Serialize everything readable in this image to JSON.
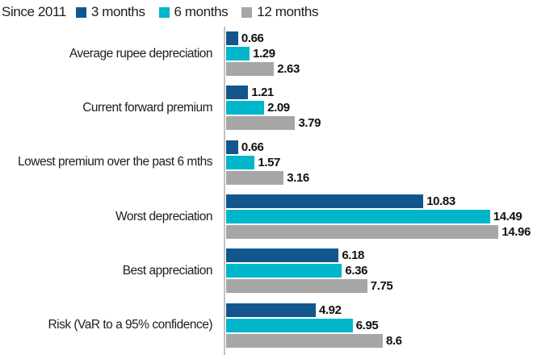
{
  "legend": {
    "title": "Since 2011",
    "items": [
      {
        "label": "3 months",
        "color": "#12568b"
      },
      {
        "label": "6 months",
        "color": "#00b6ca"
      },
      {
        "label": "12 months",
        "color": "#a6a6a6"
      }
    ]
  },
  "chart_data": {
    "type": "bar",
    "orientation": "horizontal",
    "title": "Since 2011",
    "categories": [
      "Average rupee depreciation",
      "Current forward premium",
      "Lowest premium over the past 6 mths",
      "Worst depreciation",
      "Best appreciation",
      "Risk (VaR to a 95% confidence)"
    ],
    "series": [
      {
        "name": "3 months",
        "color": "#12568b",
        "values": [
          0.66,
          1.21,
          0.66,
          10.83,
          6.18,
          4.92
        ]
      },
      {
        "name": "6 months",
        "color": "#00b6ca",
        "values": [
          1.29,
          2.09,
          1.57,
          14.49,
          6.36,
          6.95
        ]
      },
      {
        "name": "12 months",
        "color": "#a6a6a6",
        "values": [
          2.63,
          3.79,
          3.16,
          14.96,
          7.75,
          8.6
        ]
      }
    ],
    "xlim": [
      0,
      16.85
    ],
    "value_labels": true,
    "legend_position": "top",
    "grid": false,
    "axis_color": "#c3c2c1"
  }
}
